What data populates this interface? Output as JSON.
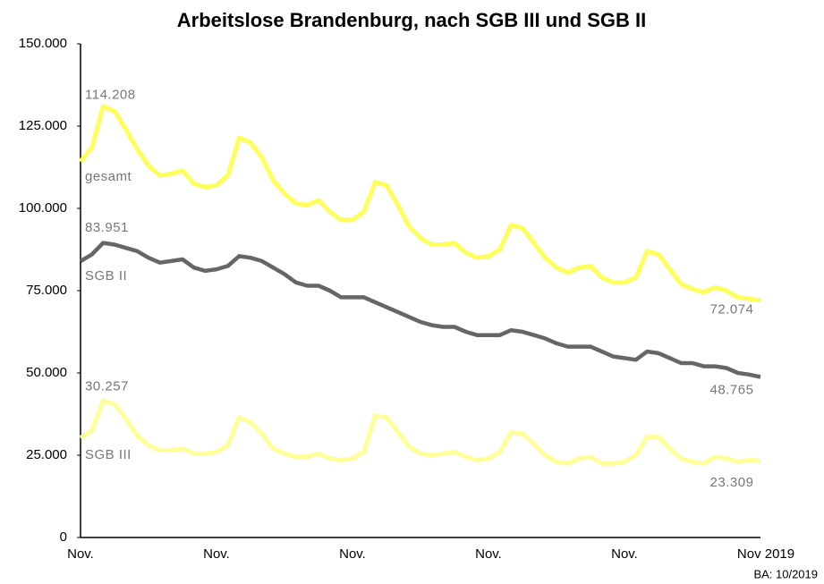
{
  "chart_data": {
    "type": "line",
    "title": "Arbeitslose Brandenburg, nach SGB III und SGB II",
    "source": "BA: 10/2019",
    "categories": [
      "Nov.",
      null,
      null,
      null,
      null,
      null,
      null,
      null,
      null,
      null,
      null,
      null,
      "Nov.",
      null,
      null,
      null,
      null,
      null,
      null,
      null,
      null,
      null,
      null,
      null,
      "Nov.",
      null,
      null,
      null,
      null,
      null,
      null,
      null,
      null,
      null,
      null,
      null,
      "Nov.",
      null,
      null,
      null,
      null,
      null,
      null,
      null,
      null,
      null,
      null,
      null,
      "Nov.",
      null,
      null,
      null,
      null,
      null,
      null,
      null,
      null,
      null,
      null,
      null,
      "Nov 2019"
    ],
    "ylim": [
      0,
      150000
    ],
    "yticks": [
      0,
      {
        "value": 25000,
        "label": "25.000"
      },
      {
        "value": 50000,
        "label": "50.000"
      },
      {
        "value": 75000,
        "label": "75.000"
      },
      {
        "value": 100000,
        "label": "100.000"
      },
      {
        "value": 125000,
        "label": "125.000"
      },
      {
        "value": 150000,
        "label": "150.000"
      }
    ],
    "grid": false,
    "series": [
      {
        "name": "gesamt",
        "color": "#ffff5c",
        "values": [
          114208,
          118500,
          131000,
          129500,
          124000,
          118000,
          113000,
          110000,
          110500,
          111500,
          107500,
          106500,
          107000,
          110000,
          121500,
          120000,
          115500,
          108500,
          104500,
          101500,
          101000,
          102500,
          99000,
          96500,
          96500,
          99000,
          108000,
          107000,
          101000,
          94500,
          91000,
          89000,
          89000,
          89500,
          86500,
          85000,
          85500,
          87500,
          95000,
          94000,
          89500,
          85000,
          82000,
          80500,
          82000,
          82500,
          79000,
          77500,
          77500,
          79000,
          87000,
          86000,
          81500,
          77000,
          75500,
          74500,
          76000,
          75000,
          73000,
          72500,
          72074
        ],
        "value_labels": [
          "114.208",
          null,
          null,
          null,
          null,
          null,
          null,
          null,
          null,
          null,
          null,
          null,
          null,
          null,
          null,
          null,
          null,
          null,
          null,
          null,
          null,
          null,
          null,
          null,
          null,
          null,
          null,
          null,
          null,
          null,
          null,
          null,
          null,
          null,
          null,
          null,
          null,
          null,
          null,
          null,
          null,
          null,
          null,
          null,
          null,
          null,
          null,
          null,
          null,
          null,
          null,
          null,
          null,
          null,
          null,
          null,
          null,
          null,
          null,
          null,
          "72.074"
        ]
      },
      {
        "name": "SGB II",
        "color": "#666666",
        "values": [
          83951,
          86000,
          89500,
          89000,
          88000,
          87000,
          85000,
          83500,
          84000,
          84500,
          82000,
          81000,
          81500,
          82500,
          85500,
          85000,
          84000,
          82000,
          80000,
          77500,
          76500,
          76500,
          75000,
          73000,
          73000,
          73000,
          71500,
          70000,
          68500,
          67000,
          65500,
          64500,
          64000,
          64000,
          62500,
          61500,
          61500,
          61500,
          63000,
          62500,
          61500,
          60500,
          59000,
          58000,
          58000,
          58000,
          56500,
          55000,
          54500,
          54000,
          56500,
          56000,
          54500,
          53000,
          53000,
          52000,
          52000,
          51500,
          50000,
          49500,
          48765
        ],
        "value_labels": [
          "83.951",
          null,
          null,
          null,
          null,
          null,
          null,
          null,
          null,
          null,
          null,
          null,
          null,
          null,
          null,
          null,
          null,
          null,
          null,
          null,
          null,
          null,
          null,
          null,
          null,
          null,
          null,
          null,
          null,
          null,
          null,
          null,
          null,
          null,
          null,
          null,
          null,
          null,
          null,
          null,
          null,
          null,
          null,
          null,
          null,
          null,
          null,
          null,
          null,
          null,
          null,
          null,
          null,
          null,
          null,
          null,
          null,
          null,
          null,
          null,
          "48.765"
        ]
      },
      {
        "name": "SGB III",
        "color": "#ffff99",
        "values": [
          30257,
          32500,
          41500,
          40500,
          36000,
          31000,
          28000,
          26500,
          26500,
          27000,
          25500,
          25500,
          26000,
          28000,
          36500,
          35000,
          31500,
          27000,
          25500,
          24500,
          24500,
          25500,
          24000,
          23500,
          24000,
          26000,
          37000,
          36500,
          32000,
          27500,
          25500,
          25000,
          25500,
          26000,
          24500,
          23500,
          24000,
          26000,
          32000,
          31500,
          28500,
          25000,
          23000,
          22500,
          24000,
          24500,
          22500,
          22500,
          23000,
          25000,
          30500,
          30500,
          27000,
          24000,
          23000,
          22500,
          24500,
          24000,
          23000,
          23500,
          23309
        ],
        "value_labels": [
          "30.257",
          null,
          null,
          null,
          null,
          null,
          null,
          null,
          null,
          null,
          null,
          null,
          null,
          null,
          null,
          null,
          null,
          null,
          null,
          null,
          null,
          null,
          null,
          null,
          null,
          null,
          null,
          null,
          null,
          null,
          null,
          null,
          null,
          null,
          null,
          null,
          null,
          null,
          null,
          null,
          null,
          null,
          null,
          null,
          null,
          null,
          null,
          null,
          null,
          null,
          null,
          null,
          null,
          null,
          null,
          null,
          null,
          null,
          null,
          null,
          "23.309"
        ]
      }
    ]
  }
}
